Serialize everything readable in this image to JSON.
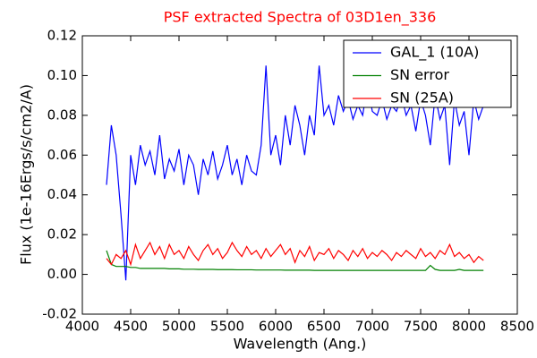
{
  "chart_data": {
    "type": "line",
    "title": "PSF extracted Spectra of 03D1en_336",
    "xlabel": "Wavelength (Ang.)",
    "ylabel": "Flux (1e-16Ergs/s/cm2/A)",
    "x": [
      4250,
      4300,
      4350,
      4400,
      4450,
      4500,
      4550,
      4600,
      4650,
      4700,
      4750,
      4800,
      4850,
      4900,
      4950,
      5000,
      5050,
      5100,
      5150,
      5200,
      5250,
      5300,
      5350,
      5400,
      5450,
      5500,
      5550,
      5600,
      5650,
      5700,
      5750,
      5800,
      5850,
      5900,
      5950,
      6000,
      6050,
      6100,
      6150,
      6200,
      6250,
      6300,
      6350,
      6400,
      6450,
      6500,
      6550,
      6600,
      6650,
      6700,
      6750,
      6800,
      6850,
      6900,
      6950,
      7000,
      7050,
      7100,
      7150,
      7200,
      7250,
      7300,
      7350,
      7400,
      7450,
      7500,
      7550,
      7600,
      7650,
      7700,
      7750,
      7800,
      7850,
      7900,
      7950,
      8000,
      8050,
      8100,
      8150
    ],
    "series": [
      {
        "name": "GAL_1 (10A)",
        "color": "#0000ff",
        "values": [
          0.045,
          0.075,
          0.06,
          0.03,
          -0.003,
          0.06,
          0.045,
          0.065,
          0.055,
          0.062,
          0.05,
          0.07,
          0.048,
          0.058,
          0.052,
          0.063,
          0.045,
          0.06,
          0.055,
          0.04,
          0.058,
          0.05,
          0.062,
          0.048,
          0.055,
          0.065,
          0.05,
          0.058,
          0.045,
          0.06,
          0.052,
          0.05,
          0.065,
          0.105,
          0.06,
          0.07,
          0.055,
          0.08,
          0.065,
          0.085,
          0.075,
          0.06,
          0.08,
          0.07,
          0.105,
          0.08,
          0.085,
          0.075,
          0.09,
          0.082,
          0.088,
          0.078,
          0.085,
          0.08,
          0.095,
          0.082,
          0.08,
          0.088,
          0.078,
          0.085,
          0.082,
          0.09,
          0.08,
          0.085,
          0.072,
          0.088,
          0.08,
          0.065,
          0.09,
          0.078,
          0.085,
          0.055,
          0.088,
          0.075,
          0.082,
          0.06,
          0.088,
          0.078,
          0.085
        ]
      },
      {
        "name": "SN error",
        "color": "#008000",
        "values": [
          0.012,
          0.005,
          0.004,
          0.004,
          0.004,
          0.0035,
          0.0035,
          0.003,
          0.003,
          0.003,
          0.003,
          0.003,
          0.003,
          0.0028,
          0.0028,
          0.0028,
          0.0026,
          0.0026,
          0.0026,
          0.0025,
          0.0025,
          0.0025,
          0.0025,
          0.0024,
          0.0024,
          0.0024,
          0.0024,
          0.0023,
          0.0023,
          0.0023,
          0.0023,
          0.0022,
          0.0022,
          0.0022,
          0.0022,
          0.0022,
          0.0022,
          0.0021,
          0.0021,
          0.0021,
          0.0021,
          0.0021,
          0.0021,
          0.002,
          0.002,
          0.002,
          0.002,
          0.002,
          0.002,
          0.002,
          0.002,
          0.002,
          0.002,
          0.002,
          0.002,
          0.002,
          0.002,
          0.002,
          0.002,
          0.002,
          0.002,
          0.002,
          0.002,
          0.002,
          0.002,
          0.002,
          0.002,
          0.0045,
          0.0025,
          0.002,
          0.002,
          0.002,
          0.002,
          0.0025,
          0.002,
          0.002,
          0.002,
          0.002,
          0.002
        ]
      },
      {
        "name": "SN (25A)",
        "color": "#ff0000",
        "values": [
          0.008,
          0.005,
          0.01,
          0.008,
          0.012,
          0.005,
          0.015,
          0.008,
          0.012,
          0.016,
          0.01,
          0.014,
          0.008,
          0.015,
          0.01,
          0.012,
          0.008,
          0.014,
          0.01,
          0.007,
          0.012,
          0.015,
          0.01,
          0.013,
          0.008,
          0.011,
          0.016,
          0.012,
          0.009,
          0.014,
          0.01,
          0.012,
          0.008,
          0.013,
          0.009,
          0.012,
          0.015,
          0.01,
          0.013,
          0.006,
          0.012,
          0.009,
          0.014,
          0.007,
          0.011,
          0.01,
          0.013,
          0.008,
          0.012,
          0.01,
          0.007,
          0.012,
          0.009,
          0.013,
          0.008,
          0.011,
          0.009,
          0.012,
          0.01,
          0.007,
          0.011,
          0.009,
          0.012,
          0.01,
          0.008,
          0.013,
          0.009,
          0.011,
          0.008,
          0.012,
          0.01,
          0.015,
          0.009,
          0.011,
          0.008,
          0.01,
          0.006,
          0.009,
          0.007
        ]
      }
    ],
    "xlim": [
      4000,
      8500
    ],
    "xticks": [
      4000,
      4500,
      5000,
      5500,
      6000,
      6500,
      7000,
      7500,
      8000,
      8500
    ],
    "ylim": [
      -0.02,
      0.12
    ],
    "yticks": [
      -0.02,
      {
        "value": 0,
        "label": "0.00"
      },
      0.02,
      0.04,
      0.06,
      0.08,
      {
        "value": 0.1,
        "label": "0.10"
      },
      0.12
    ],
    "legend": "upper right",
    "grid": false
  }
}
